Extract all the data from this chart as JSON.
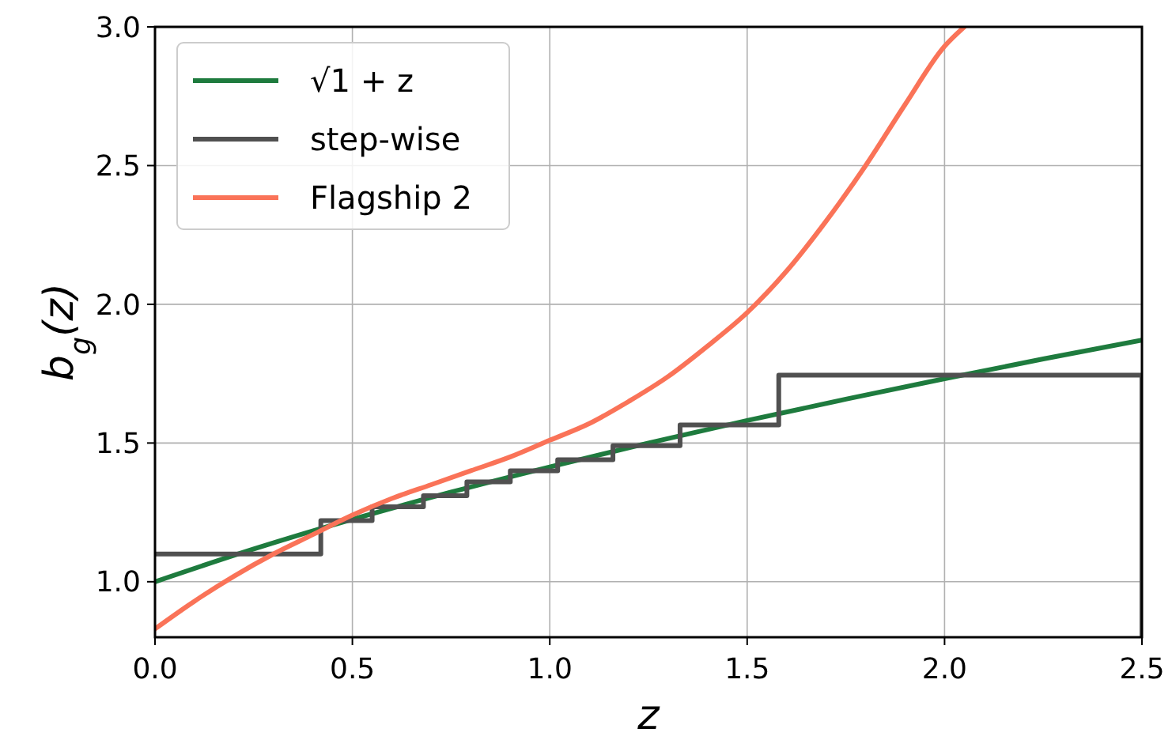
{
  "chart_data": {
    "type": "line",
    "xlabel": "z",
    "ylabel": "b$_{g}$(z)",
    "xlim": [
      0,
      2.5
    ],
    "ylim": [
      0.8,
      3.0
    ],
    "xticks": [
      {
        "value": 0,
        "label": "0.0"
      },
      0.5,
      {
        "value": 1,
        "label": "1.0"
      },
      1.5,
      {
        "value": 2,
        "label": "2.0"
      },
      2.5
    ],
    "yticks": [
      {
        "value": 1,
        "label": "1.0"
      },
      1.5,
      {
        "value": 2,
        "label": "2.0"
      },
      2.5,
      {
        "value": 3,
        "label": "3.0"
      }
    ],
    "grid": true,
    "legend": "top left",
    "series": [
      {
        "name": "√1 + z",
        "color": "#1e7b3e",
        "x": [
          0,
          0.25,
          0.5,
          0.75,
          1.0,
          1.25,
          1.5,
          1.75,
          2.0,
          2.25,
          2.5
        ],
        "values": [
          1.0,
          1.118,
          1.225,
          1.323,
          1.414,
          1.5,
          1.581,
          1.658,
          1.732,
          1.803,
          1.871
        ]
      },
      {
        "name": "step-wise",
        "type": "step",
        "color": "#505050",
        "x": [
          0,
          0.42,
          0.55,
          0.68,
          0.79,
          0.9,
          1.02,
          1.16,
          1.33,
          1.58,
          2.5,
          2.5
        ],
        "values": [
          1.1,
          1.22,
          1.27,
          1.31,
          1.36,
          1.4,
          1.44,
          1.49,
          1.565,
          1.745,
          1.745,
          0.8
        ]
      },
      {
        "name": "Flagship 2",
        "color": "#fa7358",
        "x": [
          0,
          0.1,
          0.2,
          0.3,
          0.4,
          0.5,
          0.6,
          0.7,
          0.8,
          0.9,
          1.0,
          1.1,
          1.2,
          1.3,
          1.4,
          1.5,
          1.6,
          1.7,
          1.8,
          1.9,
          2.0,
          2.05
        ],
        "values": [
          0.83,
          0.93,
          1.02,
          1.1,
          1.17,
          1.24,
          1.3,
          1.35,
          1.4,
          1.45,
          1.51,
          1.57,
          1.65,
          1.74,
          1.85,
          1.97,
          2.12,
          2.3,
          2.5,
          2.72,
          2.93,
          3.0
        ]
      }
    ]
  }
}
